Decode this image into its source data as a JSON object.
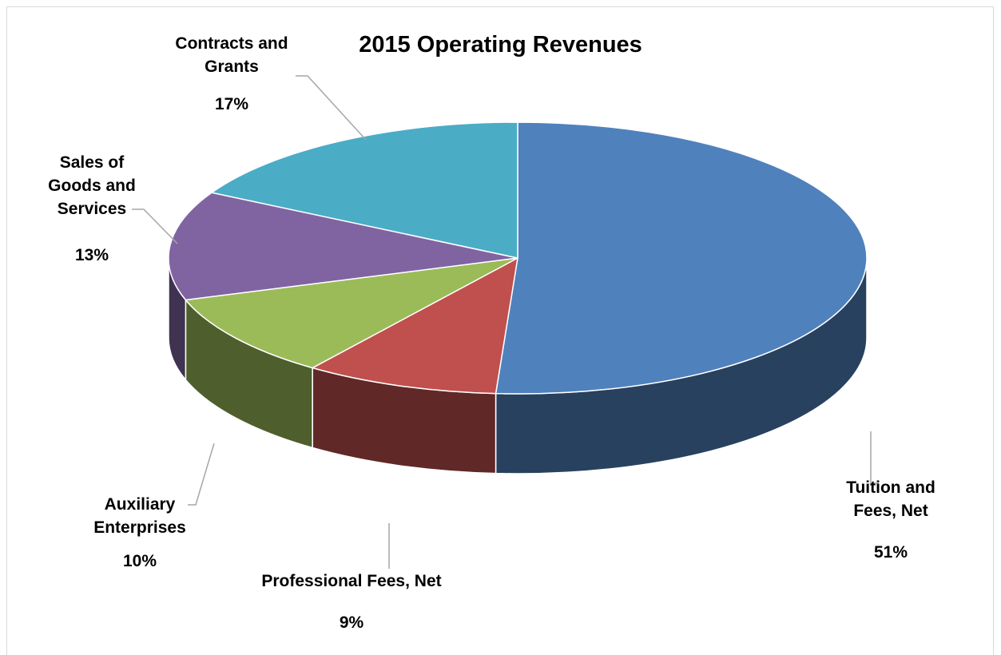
{
  "chart_data": {
    "type": "pie",
    "title": "2015 Operating Revenues",
    "categories": [
      "Tuition and Fees, Net",
      "Professional Fees, Net",
      "Auxiliary Enterprises",
      "Sales of Goods and Services",
      "Contracts and Grants"
    ],
    "values": [
      51,
      9,
      10,
      13,
      17
    ],
    "value_labels": [
      "51%",
      "9%",
      "10%",
      "13%",
      "17%"
    ],
    "colors": [
      "#4f81bd",
      "#c0504d",
      "#9bbb59",
      "#8064a2",
      "#4bacc6"
    ]
  }
}
